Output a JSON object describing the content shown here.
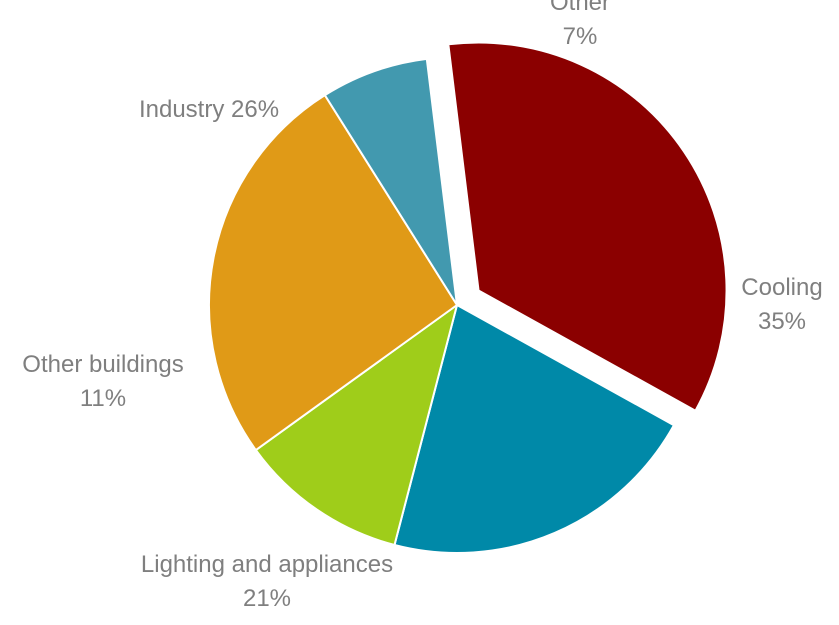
{
  "chart_data": {
    "type": "pie",
    "title": "",
    "slices": [
      {
        "label": "Cooling",
        "value": 35,
        "value_label": "35%",
        "color": "#8b0000",
        "exploded": true,
        "label_lines": [
          "Cooling",
          "35%"
        ]
      },
      {
        "label": "Lighting and appliances",
        "value": 21,
        "value_label": "21%",
        "color": "#0089a8",
        "exploded": false,
        "label_lines": [
          "Lighting and appliances",
          "21%"
        ]
      },
      {
        "label": "Other buildings",
        "value": 11,
        "value_label": "11%",
        "color": "#9fcd1a",
        "exploded": false,
        "label_lines": [
          "Other buildings",
          "11%"
        ]
      },
      {
        "label": "Industry",
        "value": 26,
        "value_label": "26%",
        "color": "#e09a17",
        "exploded": false,
        "label_lines": [
          "Industry 26%"
        ]
      },
      {
        "label": "Other",
        "value": 7,
        "value_label": "7%",
        "color": "#4299af",
        "exploded": false,
        "label_lines": [
          "Other",
          "7%"
        ]
      }
    ],
    "legend": "none",
    "label_color": "#7f7f7f"
  }
}
